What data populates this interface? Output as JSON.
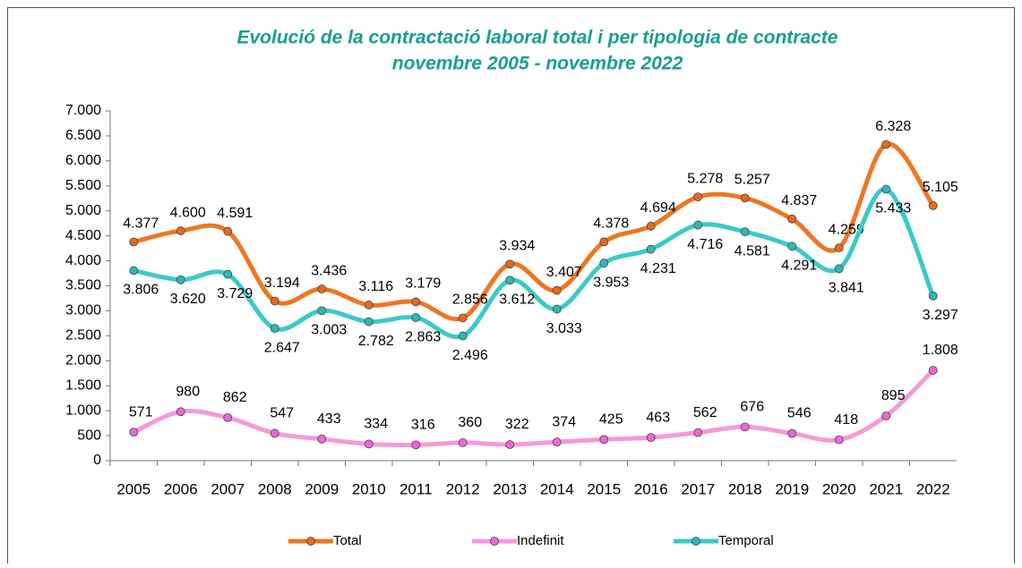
{
  "chart_data": {
    "type": "line",
    "title": "Evolució de la contractació laboral total i per tipologia de contracte",
    "subtitle": "novembre 2005 - novembre 2022",
    "categories": [
      "2005",
      "2006",
      "2007",
      "2008",
      "2009",
      "2010",
      "2011",
      "2012",
      "2013",
      "2014",
      "2015",
      "2016",
      "2017",
      "2018",
      "2019",
      "2020",
      "2021",
      "2022"
    ],
    "series": [
      {
        "name": "Total",
        "color": "#ee7623",
        "values": [
          4377,
          4600,
          4591,
          3194,
          3436,
          3116,
          3179,
          2856,
          3934,
          3407,
          4378,
          4694,
          5278,
          5257,
          4837,
          4259,
          6328,
          5105
        ],
        "value_labels": [
          "4.377",
          "4.600",
          "4.591",
          "3.194",
          "3.436",
          "3.116",
          "3.179",
          "2.856",
          "3.934",
          "3.407",
          "4.378",
          "4.694",
          "5.278",
          "5.257",
          "4.837",
          "4.259",
          "6.328",
          "5.105"
        ]
      },
      {
        "name": "Indefinit",
        "color": "#f59ad6",
        "values": [
          571,
          980,
          862,
          547,
          433,
          334,
          316,
          360,
          322,
          374,
          425,
          463,
          562,
          676,
          546,
          418,
          895,
          1808
        ],
        "value_labels": [
          "571",
          "980",
          "862",
          "547",
          "433",
          "334",
          "316",
          "360",
          "322",
          "374",
          "425",
          "463",
          "562",
          "676",
          "546",
          "418",
          "895",
          "1.808"
        ]
      },
      {
        "name": "Temporal",
        "color": "#3cc9c9",
        "values": [
          3806,
          3620,
          3729,
          2647,
          3003,
          2782,
          2863,
          2496,
          3612,
          3033,
          3953,
          4231,
          4716,
          4581,
          4291,
          3841,
          5433,
          3297
        ],
        "value_labels": [
          "3.806",
          "3.620",
          "3.729",
          "2.647",
          "3.003",
          "2.782",
          "2.863",
          "2.496",
          "3.612",
          "3.033",
          "3.953",
          "4.231",
          "4.716",
          "4.581",
          "4.291",
          "3.841",
          "5.433",
          "3.297"
        ]
      }
    ],
    "ylim": [
      0,
      7000
    ],
    "yticks": [
      0,
      500,
      {
        "value": 1000,
        "label": "1.000"
      },
      {
        "value": 1500,
        "label": "1.500"
      },
      {
        "value": 2000,
        "label": "2.000"
      },
      {
        "value": 2500,
        "label": "2.500"
      },
      {
        "value": 3000,
        "label": "3.000"
      },
      {
        "value": 3500,
        "label": "3.500"
      },
      {
        "value": 4000,
        "label": "4.000"
      },
      {
        "value": 4500,
        "label": "4.500"
      },
      {
        "value": 5000,
        "label": "5.000"
      },
      {
        "value": 5500,
        "label": "5.500"
      },
      {
        "value": 6000,
        "label": "6.000"
      },
      {
        "value": 6500,
        "label": "6.500"
      },
      {
        "value": 7000,
        "label": "7.000"
      }
    ],
    "legend": "bottom"
  }
}
